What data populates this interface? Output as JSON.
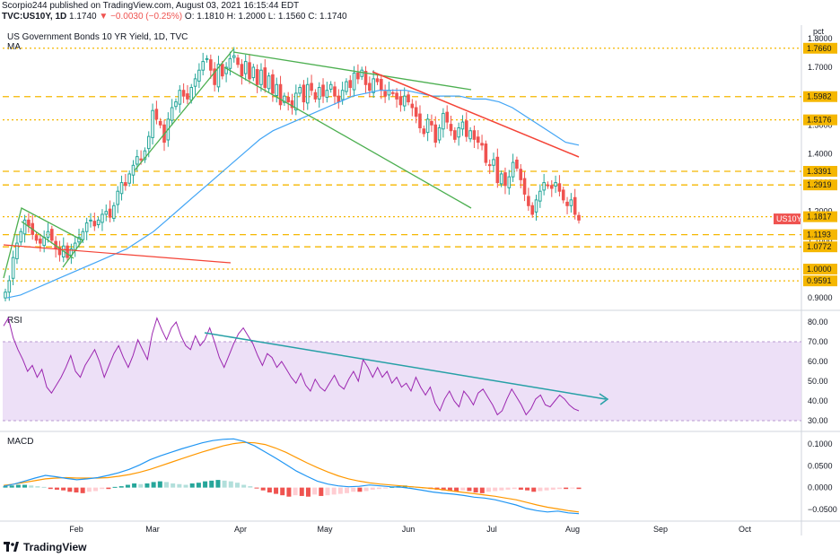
{
  "header": {
    "line1": "Scorpio244 published on TradingView.com, August 03, 2021 16:15:44 EDT",
    "symbol": "TVC:US10Y, 1D",
    "last": "1.1740",
    "change": "▼ −0.0030 (−0.25%)",
    "ohlc": "O: 1.1810 H: 1.2000 L: 1.1560 C: 1.1740"
  },
  "panes": {
    "price_title": "US Government Bonds 10 YR Yield, 1D, TVC",
    "ma_label": "MA",
    "rsi_label": "RSI",
    "macd_label": "MACD",
    "unit": "pct"
  },
  "footer": {
    "brand": "TradingView"
  },
  "colors": {
    "up": "#26a69a",
    "down": "#ef5350",
    "level": "#f5b700",
    "ma": "#42a5f5",
    "green_channel": "#4caf50",
    "red_trend": "#f44336",
    "rsi_line": "#9c27b0",
    "rsi_band": "#e8d8f5",
    "rsi_trend": "#26a0a6",
    "macd_line": "#2196f3",
    "signal_line": "#ff9800"
  },
  "chart_data": [
    {
      "type": "candlestick",
      "title": "US Government Bonds 10 YR Yield, 1D, TVC",
      "x_ticks": [
        "Feb",
        "Mar",
        "Apr",
        "May",
        "Jun",
        "Jul",
        "Aug",
        "Sep",
        "Oct"
      ],
      "y_ticks": [
        "1.8000",
        "1.7000",
        "1.6000",
        "1.5000",
        "1.4000",
        "1.3000",
        "1.2000",
        "1.1000",
        "1.0000",
        "0.9000"
      ],
      "ylim": [
        0.86,
        1.84
      ],
      "horizontal_levels": [
        {
          "value": 1.766,
          "label": "1.7660",
          "style": "dotted"
        },
        {
          "value": 1.5982,
          "label": "1.5982",
          "style": "dashed"
        },
        {
          "value": 1.5176,
          "label": "1.5176",
          "style": "dotted"
        },
        {
          "value": 1.3391,
          "label": "1.3391",
          "style": "dashed"
        },
        {
          "value": 1.2919,
          "label": "1.2919",
          "style": "dashed"
        },
        {
          "value": 1.1817,
          "label": "1.1817",
          "style": "dotted"
        },
        {
          "value": 1.1193,
          "label": "1.1193",
          "style": "dashed"
        },
        {
          "value": 1.0772,
          "label": "1.0772",
          "style": "dashed"
        },
        {
          "value": 1.0,
          "label": "1.0000",
          "style": "dotted"
        },
        {
          "value": 0.9591,
          "label": "0.9591",
          "style": "dotted"
        }
      ],
      "last_price_tag": {
        "label": "US10Y",
        "value": 1.174
      },
      "close_series": [
        0.92,
        0.96,
        1.04,
        1.09,
        1.13,
        1.17,
        1.15,
        1.12,
        1.1,
        1.09,
        1.11,
        1.13,
        1.1,
        1.07,
        1.05,
        1.08,
        1.04,
        1.07,
        1.09,
        1.11,
        1.13,
        1.16,
        1.17,
        1.15,
        1.17,
        1.19,
        1.2,
        1.18,
        1.22,
        1.27,
        1.3,
        1.29,
        1.33,
        1.36,
        1.39,
        1.38,
        1.41,
        1.46,
        1.55,
        1.52,
        1.5,
        1.44,
        1.52,
        1.56,
        1.58,
        1.62,
        1.6,
        1.59,
        1.63,
        1.66,
        1.69,
        1.72,
        1.73,
        1.69,
        1.64,
        1.71,
        1.67,
        1.7,
        1.73,
        1.74,
        1.71,
        1.67,
        1.72,
        1.66,
        1.7,
        1.64,
        1.69,
        1.63,
        1.67,
        1.61,
        1.64,
        1.57,
        1.6,
        1.58,
        1.56,
        1.61,
        1.63,
        1.58,
        1.64,
        1.62,
        1.59,
        1.63,
        1.6,
        1.62,
        1.64,
        1.6,
        1.58,
        1.62,
        1.65,
        1.63,
        1.68,
        1.66,
        1.69,
        1.64,
        1.62,
        1.66,
        1.65,
        1.62,
        1.6,
        1.62,
        1.61,
        1.59,
        1.57,
        1.6,
        1.58,
        1.56,
        1.53,
        1.49,
        1.47,
        1.52,
        1.5,
        1.44,
        1.49,
        1.54,
        1.51,
        1.48,
        1.45,
        1.49,
        1.51,
        1.46,
        1.48,
        1.45,
        1.44,
        1.43,
        1.37,
        1.36,
        1.38,
        1.3,
        1.33,
        1.29,
        1.32,
        1.37,
        1.35,
        1.31,
        1.26,
        1.22,
        1.19,
        1.24,
        1.27,
        1.3,
        1.29,
        1.28,
        1.3,
        1.27,
        1.24,
        1.22,
        1.24,
        1.19,
        1.17
      ],
      "ma_series": [
        0.9,
        0.91,
        0.93,
        0.95,
        0.97,
        0.99,
        1.01,
        1.03,
        1.05,
        1.07,
        1.1,
        1.13,
        1.17,
        1.21,
        1.25,
        1.29,
        1.33,
        1.37,
        1.41,
        1.45,
        1.48,
        1.5,
        1.52,
        1.54,
        1.56,
        1.58,
        1.6,
        1.61,
        1.62,
        1.62,
        1.62,
        1.61,
        1.6,
        1.6,
        1.6,
        1.59,
        1.59,
        1.58,
        1.56,
        1.53,
        1.5,
        1.47,
        1.44,
        1.43
      ],
      "annotations": [
        "green flag channel",
        "green descending channel",
        "red downtrend line",
        "red long trend line",
        "blue moving average"
      ]
    },
    {
      "type": "line",
      "title": "RSI",
      "y_ticks": [
        "80.00",
        "70.00",
        "60.00",
        "50.00",
        "40.00",
        "30.00"
      ],
      "ylim": [
        25,
        85
      ],
      "band": [
        30,
        70
      ],
      "values": [
        78,
        82,
        72,
        66,
        61,
        55,
        58,
        52,
        56,
        47,
        44,
        48,
        52,
        57,
        63,
        55,
        52,
        58,
        62,
        66,
        60,
        52,
        58,
        64,
        68,
        62,
        57,
        63,
        71,
        66,
        61,
        74,
        82,
        76,
        71,
        77,
        80,
        73,
        68,
        66,
        73,
        68,
        71,
        77,
        70,
        62,
        57,
        63,
        69,
        74,
        77,
        73,
        69,
        63,
        58,
        64,
        62,
        57,
        60,
        56,
        52,
        49,
        54,
        48,
        45,
        51,
        47,
        45,
        49,
        53,
        48,
        46,
        51,
        55,
        50,
        61,
        57,
        52,
        57,
        52,
        55,
        49,
        52,
        47,
        49,
        45,
        52,
        47,
        43,
        47,
        39,
        35,
        41,
        45,
        40,
        37,
        45,
        42,
        38,
        44,
        46,
        42,
        38,
        33,
        35,
        41,
        46,
        42,
        38,
        33,
        36,
        41,
        43,
        38,
        37,
        40,
        43,
        41,
        38,
        36,
        35
      ]
    },
    {
      "type": "line",
      "title": "MACD",
      "y_ticks": [
        "0.1000",
        "0.0500",
        "0.0000",
        "−0.0500"
      ],
      "ylim": [
        -0.075,
        0.125
      ],
      "macd": [
        0.003,
        0.008,
        0.015,
        0.022,
        0.028,
        0.025,
        0.021,
        0.018,
        0.02,
        0.023,
        0.028,
        0.034,
        0.042,
        0.052,
        0.064,
        0.073,
        0.081,
        0.089,
        0.096,
        0.103,
        0.108,
        0.111,
        0.112,
        0.106,
        0.096,
        0.082,
        0.068,
        0.053,
        0.038,
        0.026,
        0.015,
        0.008,
        0.004,
        0.002,
        0.003,
        0.006,
        0.004,
        0.002,
        0.001,
        -0.002,
        -0.006,
        -0.01,
        -0.013,
        -0.015,
        -0.018,
        -0.022,
        -0.024,
        -0.028,
        -0.034,
        -0.04,
        -0.048,
        -0.053,
        -0.056,
        -0.054,
        -0.058,
        -0.06
      ],
      "signal": [
        0.005,
        0.008,
        0.012,
        0.016,
        0.02,
        0.022,
        0.023,
        0.022,
        0.022,
        0.022,
        0.023,
        0.026,
        0.03,
        0.035,
        0.042,
        0.05,
        0.058,
        0.066,
        0.074,
        0.082,
        0.089,
        0.096,
        0.101,
        0.104,
        0.103,
        0.099,
        0.091,
        0.081,
        0.069,
        0.057,
        0.046,
        0.036,
        0.027,
        0.02,
        0.015,
        0.011,
        0.008,
        0.006,
        0.004,
        0.002,
        0.0,
        -0.002,
        -0.005,
        -0.008,
        -0.011,
        -0.014,
        -0.017,
        -0.02,
        -0.024,
        -0.028,
        -0.034,
        -0.04,
        -0.045,
        -0.049,
        -0.053,
        -0.056
      ],
      "histogram": [
        0.002,
        0.003,
        0.004,
        0.004,
        0.003,
        0.002,
        0.001,
        -0.002,
        -0.003,
        -0.004,
        -0.006,
        -0.007,
        -0.008,
        -0.006,
        -0.005,
        -0.002,
        -0.002,
        0.001,
        0.002,
        0.004,
        0.006,
        0.005,
        0.006,
        0.008,
        0.009,
        0.008,
        0.006,
        0.005,
        0.004,
        0.006,
        0.007,
        0.009,
        0.01,
        0.011,
        0.01,
        0.009,
        0.007,
        0.004,
        0.002,
        -0.001,
        -0.004,
        -0.007,
        -0.009,
        -0.011,
        -0.013,
        -0.011,
        -0.012,
        -0.013,
        -0.01,
        -0.012,
        -0.011,
        -0.01,
        -0.009,
        -0.008,
        -0.006,
        -0.006,
        -0.005,
        -0.003,
        -0.002,
        -0.001,
        0.001,
        0.002,
        0.003,
        0.002,
        0.001,
        0.0,
        -0.002,
        -0.003,
        -0.004,
        -0.005,
        -0.006,
        -0.004,
        -0.005,
        -0.007,
        -0.008,
        -0.006,
        -0.005,
        -0.004,
        -0.003,
        -0.002,
        -0.003,
        -0.004,
        -0.006,
        -0.005,
        -0.004,
        -0.003,
        -0.002,
        -0.002,
        -0.001,
        -0.002
      ]
    }
  ]
}
